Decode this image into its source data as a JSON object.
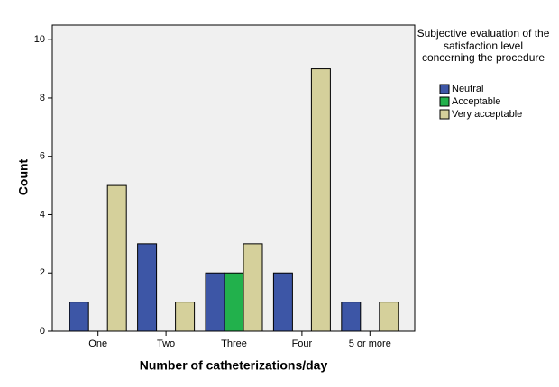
{
  "chart_data": {
    "type": "bar",
    "x_label": "Number of catheterizations/day",
    "y_label": "Count",
    "legend_title": "Subjective evaluation of the satisfaction level concerning the procedure",
    "categories": [
      "One",
      "Two",
      "Three",
      "Four",
      "5 or more"
    ],
    "series": [
      {
        "name": "Neutral",
        "color": "#3d56a6",
        "values": [
          1,
          3,
          2,
          2,
          1
        ]
      },
      {
        "name": "Acceptable",
        "color": "#22b14c",
        "values": [
          0,
          0,
          2,
          0,
          0
        ]
      },
      {
        "name": "Very acceptable",
        "color": "#d5d09b",
        "values": [
          5,
          1,
          3,
          9,
          1
        ]
      }
    ],
    "ylim": [
      0,
      10.5
    ],
    "yticks": [
      0,
      2,
      4,
      6,
      8,
      10
    ]
  }
}
